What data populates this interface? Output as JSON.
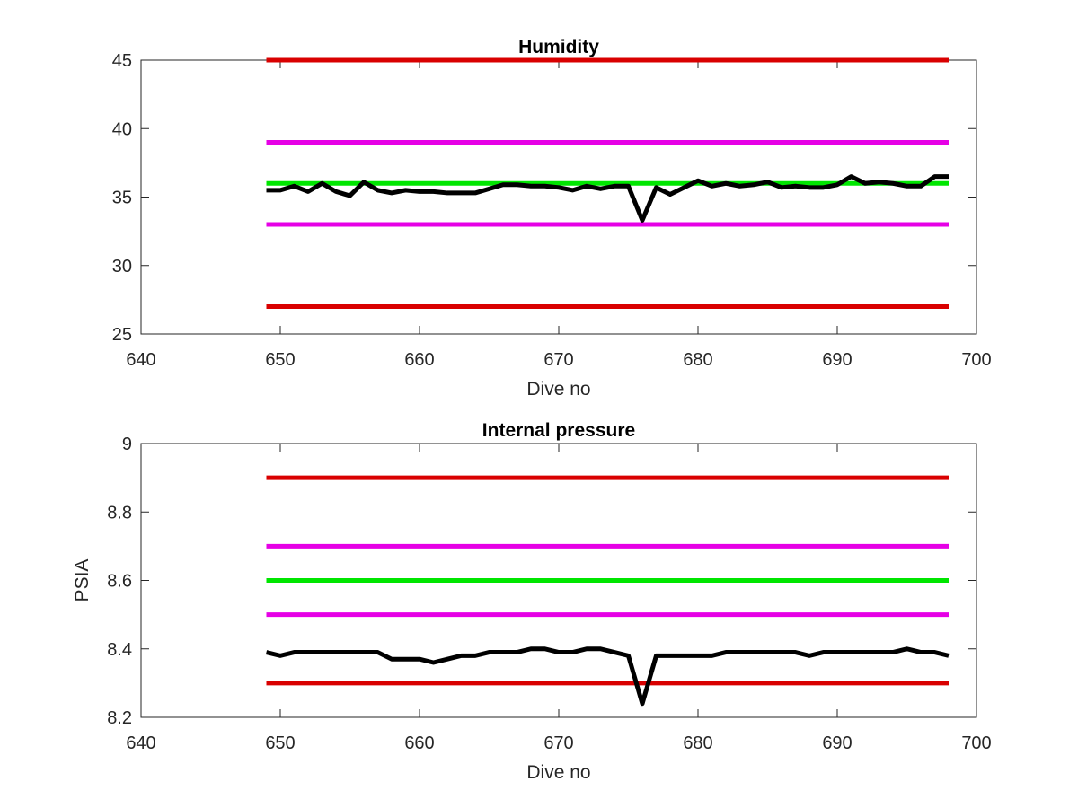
{
  "chart_data": [
    {
      "type": "line",
      "title": "Humidity",
      "xlabel": "Dive no",
      "ylabel": "",
      "xlim": [
        640,
        700
      ],
      "ylim": [
        25,
        45
      ],
      "xticks": [
        640,
        650,
        660,
        670,
        680,
        690,
        700
      ],
      "xtick_labels": [
        "640",
        "650",
        "660",
        "670",
        "680",
        "690",
        "700"
      ],
      "yticks": [
        25,
        30,
        35,
        40,
        45
      ],
      "ytick_labels": [
        "25",
        "30",
        "35",
        "40",
        "45"
      ],
      "grid": false,
      "legend": "none",
      "x": [
        649,
        650,
        651,
        652,
        653,
        654,
        655,
        656,
        657,
        658,
        659,
        660,
        661,
        662,
        663,
        664,
        665,
        666,
        667,
        668,
        669,
        670,
        671,
        672,
        673,
        674,
        675,
        676,
        677,
        678,
        679,
        680,
        681,
        682,
        683,
        684,
        685,
        686,
        687,
        688,
        689,
        690,
        691,
        692,
        693,
        694,
        695,
        696,
        697,
        698
      ],
      "series": [
        {
          "values": [
            35.5,
            35.5,
            35.8,
            35.4,
            36.0,
            35.4,
            35.1,
            36.1,
            35.5,
            35.3,
            35.5,
            35.4,
            35.4,
            35.3,
            35.3,
            35.3,
            35.6,
            35.9,
            35.9,
            35.8,
            35.8,
            35.7,
            35.5,
            35.8,
            35.6,
            35.8,
            35.8,
            33.3,
            35.7,
            35.2,
            35.7,
            36.2,
            35.8,
            36.0,
            35.8,
            35.9,
            36.1,
            35.7,
            35.8,
            35.7,
            35.7,
            35.9,
            36.5,
            36.0,
            36.1,
            36.0,
            35.8,
            35.8,
            36.5,
            36.5
          ],
          "color": "#000000"
        },
        {
          "values_constant": 45,
          "color": "#d90000"
        },
        {
          "values_constant": 39,
          "color": "#e600e6"
        },
        {
          "values_constant": 36,
          "color": "#00e600"
        },
        {
          "values_constant": 33,
          "color": "#e600e6"
        },
        {
          "values_constant": 27,
          "color": "#d90000"
        }
      ]
    },
    {
      "type": "line",
      "title": "Internal pressure",
      "xlabel": "Dive no",
      "ylabel": "PSIA",
      "xlim": [
        640,
        700
      ],
      "ylim": [
        8.2,
        9.0
      ],
      "xticks": [
        640,
        650,
        660,
        670,
        680,
        690,
        700
      ],
      "xtick_labels": [
        "640",
        "650",
        "660",
        "670",
        "680",
        "690",
        "700"
      ],
      "yticks": [
        8.2,
        8.4,
        8.6,
        8.8,
        9.0
      ],
      "ytick_labels": [
        "8.2",
        "8.4",
        "8.6",
        "8.8",
        "9"
      ],
      "grid": false,
      "legend": "none",
      "x": [
        649,
        650,
        651,
        652,
        653,
        654,
        655,
        656,
        657,
        658,
        659,
        660,
        661,
        662,
        663,
        664,
        665,
        666,
        667,
        668,
        669,
        670,
        671,
        672,
        673,
        674,
        675,
        676,
        677,
        678,
        679,
        680,
        681,
        682,
        683,
        684,
        685,
        686,
        687,
        688,
        689,
        690,
        691,
        692,
        693,
        694,
        695,
        696,
        697,
        698
      ],
      "series": [
        {
          "values": [
            8.39,
            8.38,
            8.39,
            8.39,
            8.39,
            8.39,
            8.39,
            8.39,
            8.39,
            8.37,
            8.37,
            8.37,
            8.36,
            8.37,
            8.38,
            8.38,
            8.39,
            8.39,
            8.39,
            8.4,
            8.4,
            8.39,
            8.39,
            8.4,
            8.4,
            8.39,
            8.38,
            8.24,
            8.38,
            8.38,
            8.38,
            8.38,
            8.38,
            8.39,
            8.39,
            8.39,
            8.39,
            8.39,
            8.39,
            8.38,
            8.39,
            8.39,
            8.39,
            8.39,
            8.39,
            8.39,
            8.4,
            8.39,
            8.39,
            8.38
          ],
          "color": "#000000"
        },
        {
          "values_constant": 8.9,
          "color": "#d90000"
        },
        {
          "values_constant": 8.7,
          "color": "#e600e6"
        },
        {
          "values_constant": 8.6,
          "color": "#00e600"
        },
        {
          "values_constant": 8.5,
          "color": "#e600e6"
        },
        {
          "values_constant": 8.3,
          "color": "#d90000"
        }
      ]
    }
  ]
}
